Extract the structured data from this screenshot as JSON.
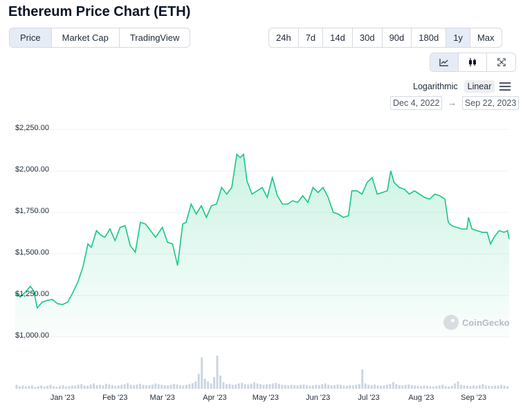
{
  "page_title": "Ethereum Price Chart (ETH)",
  "view_tabs": [
    {
      "label": "Price",
      "active": true
    },
    {
      "label": "Market Cap",
      "active": false
    },
    {
      "label": "TradingView",
      "active": false
    }
  ],
  "time_ranges": [
    {
      "label": "24h",
      "active": false
    },
    {
      "label": "7d",
      "active": false
    },
    {
      "label": "14d",
      "active": false
    },
    {
      "label": "30d",
      "active": false
    },
    {
      "label": "90d",
      "active": false
    },
    {
      "label": "180d",
      "active": false
    },
    {
      "label": "1y",
      "active": true
    },
    {
      "label": "Max",
      "active": false
    }
  ],
  "chart_types": [
    {
      "icon": "line-chart-icon",
      "active": true
    },
    {
      "icon": "candlestick-icon",
      "active": false
    },
    {
      "icon": "fullscreen-icon",
      "active": false
    }
  ],
  "scale": {
    "logarithmic_label": "Logarithmic",
    "linear_label": "Linear",
    "active": "Linear"
  },
  "date_range": {
    "from": "Dec 4, 2022",
    "arrow": "→",
    "to": "Sep 22, 2023"
  },
  "watermark": "CoinGecko",
  "colors": {
    "line": "#16c784",
    "fill": "#16c784",
    "volume": "#cbd5e1",
    "grid": "#eef0f3"
  },
  "chart_data": {
    "type": "area",
    "y_tick_labels": [
      "$2,250.00",
      "$2,000.00",
      "$1,750.00",
      "$1,500.00",
      "$1,250.00",
      "$1,000.00"
    ],
    "y_ticks": [
      2250,
      2000,
      1750,
      1500,
      1250,
      1000
    ],
    "ylim": [
      1000,
      2250
    ],
    "x_tick_labels": [
      "Jan '23",
      "Feb '23",
      "Mar '23",
      "Apr '23",
      "May '23",
      "Jun '23",
      "Jul '23",
      "Aug '23",
      "Sep '23"
    ],
    "x_ticks": [
      "2023-01-01",
      "2023-02-01",
      "2023-03-01",
      "2023-04-01",
      "2023-05-01",
      "2023-06-01",
      "2023-07-01",
      "2023-08-01",
      "2023-09-01"
    ],
    "xlim": [
      "2022-12-04",
      "2023-09-22"
    ],
    "series": [
      {
        "values": [
          [
            "2022-12-04",
            1265
          ],
          [
            "2022-12-07",
            1240
          ],
          [
            "2022-12-10",
            1270
          ],
          [
            "2022-12-13",
            1305
          ],
          [
            "2022-12-15",
            1275
          ],
          [
            "2022-12-17",
            1175
          ],
          [
            "2022-12-20",
            1210
          ],
          [
            "2022-12-23",
            1220
          ],
          [
            "2022-12-26",
            1225
          ],
          [
            "2022-12-29",
            1200
          ],
          [
            "2023-01-01",
            1195
          ],
          [
            "2023-01-04",
            1210
          ],
          [
            "2023-01-07",
            1265
          ],
          [
            "2023-01-10",
            1330
          ],
          [
            "2023-01-13",
            1420
          ],
          [
            "2023-01-16",
            1560
          ],
          [
            "2023-01-18",
            1540
          ],
          [
            "2023-01-21",
            1640
          ],
          [
            "2023-01-24",
            1610
          ],
          [
            "2023-01-26",
            1600
          ],
          [
            "2023-01-29",
            1650
          ],
          [
            "2023-02-01",
            1580
          ],
          [
            "2023-02-04",
            1660
          ],
          [
            "2023-02-07",
            1670
          ],
          [
            "2023-02-10",
            1550
          ],
          [
            "2023-02-13",
            1510
          ],
          [
            "2023-02-16",
            1690
          ],
          [
            "2023-02-19",
            1680
          ],
          [
            "2023-02-22",
            1640
          ],
          [
            "2023-02-25",
            1600
          ],
          [
            "2023-03-01",
            1660
          ],
          [
            "2023-03-04",
            1570
          ],
          [
            "2023-03-07",
            1560
          ],
          [
            "2023-03-10",
            1430
          ],
          [
            "2023-03-13",
            1680
          ],
          [
            "2023-03-15",
            1690
          ],
          [
            "2023-03-18",
            1800
          ],
          [
            "2023-03-21",
            1740
          ],
          [
            "2023-03-24",
            1790
          ],
          [
            "2023-03-27",
            1720
          ],
          [
            "2023-03-30",
            1790
          ],
          [
            "2023-04-02",
            1800
          ],
          [
            "2023-04-05",
            1900
          ],
          [
            "2023-04-08",
            1860
          ],
          [
            "2023-04-11",
            1900
          ],
          [
            "2023-04-14",
            2100
          ],
          [
            "2023-04-16",
            2080
          ],
          [
            "2023-04-18",
            2100
          ],
          [
            "2023-04-20",
            1940
          ],
          [
            "2023-04-23",
            1860
          ],
          [
            "2023-04-26",
            1880
          ],
          [
            "2023-04-29",
            1900
          ],
          [
            "2023-05-02",
            1840
          ],
          [
            "2023-05-05",
            1960
          ],
          [
            "2023-05-08",
            1850
          ],
          [
            "2023-05-11",
            1800
          ],
          [
            "2023-05-14",
            1800
          ],
          [
            "2023-05-17",
            1820
          ],
          [
            "2023-05-20",
            1810
          ],
          [
            "2023-05-23",
            1850
          ],
          [
            "2023-05-26",
            1810
          ],
          [
            "2023-05-29",
            1900
          ],
          [
            "2023-06-01",
            1870
          ],
          [
            "2023-06-04",
            1900
          ],
          [
            "2023-06-07",
            1840
          ],
          [
            "2023-06-10",
            1750
          ],
          [
            "2023-06-13",
            1740
          ],
          [
            "2023-06-16",
            1720
          ],
          [
            "2023-06-19",
            1730
          ],
          [
            "2023-06-21",
            1880
          ],
          [
            "2023-06-24",
            1880
          ],
          [
            "2023-06-27",
            1860
          ],
          [
            "2023-06-30",
            1930
          ],
          [
            "2023-07-03",
            1960
          ],
          [
            "2023-07-06",
            1860
          ],
          [
            "2023-07-09",
            1870
          ],
          [
            "2023-07-12",
            1880
          ],
          [
            "2023-07-14",
            2000
          ],
          [
            "2023-07-16",
            1930
          ],
          [
            "2023-07-19",
            1900
          ],
          [
            "2023-07-22",
            1890
          ],
          [
            "2023-07-25",
            1860
          ],
          [
            "2023-07-28",
            1880
          ],
          [
            "2023-07-31",
            1860
          ],
          [
            "2023-08-03",
            1840
          ],
          [
            "2023-08-06",
            1830
          ],
          [
            "2023-08-09",
            1860
          ],
          [
            "2023-08-12",
            1850
          ],
          [
            "2023-08-15",
            1830
          ],
          [
            "2023-08-17",
            1690
          ],
          [
            "2023-08-19",
            1670
          ],
          [
            "2023-08-22",
            1660
          ],
          [
            "2023-08-25",
            1650
          ],
          [
            "2023-08-28",
            1650
          ],
          [
            "2023-08-29",
            1720
          ],
          [
            "2023-08-31",
            1650
          ],
          [
            "2023-09-03",
            1640
          ],
          [
            "2023-09-06",
            1630
          ],
          [
            "2023-09-09",
            1630
          ],
          [
            "2023-09-11",
            1560
          ],
          [
            "2023-09-13",
            1600
          ],
          [
            "2023-09-16",
            1640
          ],
          [
            "2023-09-19",
            1630
          ],
          [
            "2023-09-21",
            1640
          ],
          [
            "2023-09-22",
            1590
          ]
        ]
      }
    ],
    "volume": {
      "relative_values": [
        0.12,
        0.08,
        0.1,
        0.07,
        0.09,
        0.11,
        0.06,
        0.08,
        0.1,
        0.07,
        0.09,
        0.12,
        0.08,
        0.06,
        0.09,
        0.11,
        0.07,
        0.08,
        0.1,
        0.09,
        0.12,
        0.14,
        0.1,
        0.09,
        0.13,
        0.16,
        0.11,
        0.12,
        0.1,
        0.15,
        0.13,
        0.11,
        0.09,
        0.1,
        0.12,
        0.14,
        0.17,
        0.12,
        0.11,
        0.13,
        0.15,
        0.12,
        0.1,
        0.11,
        0.13,
        0.16,
        0.14,
        0.12,
        0.11,
        0.1,
        0.12,
        0.15,
        0.13,
        0.11,
        0.1,
        0.12,
        0.14,
        0.17,
        0.22,
        0.45,
        0.95,
        0.3,
        0.22,
        0.16,
        0.35,
        1.0,
        0.4,
        0.2,
        0.14,
        0.15,
        0.12,
        0.13,
        0.16,
        0.18,
        0.14,
        0.13,
        0.15,
        0.2,
        0.16,
        0.14,
        0.12,
        0.13,
        0.14,
        0.16,
        0.18,
        0.15,
        0.12,
        0.11,
        0.1,
        0.12,
        0.11,
        0.1,
        0.12,
        0.13,
        0.11,
        0.09,
        0.1,
        0.12,
        0.11,
        0.14,
        0.16,
        0.12,
        0.1,
        0.11,
        0.13,
        0.12,
        0.1,
        0.09,
        0.11,
        0.1,
        0.12,
        0.14,
        0.58,
        0.16,
        0.12,
        0.11,
        0.13,
        0.1,
        0.09,
        0.1,
        0.12,
        0.15,
        0.2,
        0.14,
        0.11,
        0.1,
        0.12,
        0.13,
        0.11,
        0.1,
        0.09,
        0.08,
        0.1,
        0.09,
        0.08,
        0.07,
        0.09,
        0.1,
        0.12,
        0.08,
        0.07,
        0.09,
        0.16,
        0.22,
        0.12,
        0.1,
        0.09,
        0.08,
        0.1,
        0.09,
        0.11,
        0.14,
        0.1,
        0.09,
        0.08,
        0.1,
        0.09,
        0.12,
        0.1,
        0.08
      ]
    }
  }
}
